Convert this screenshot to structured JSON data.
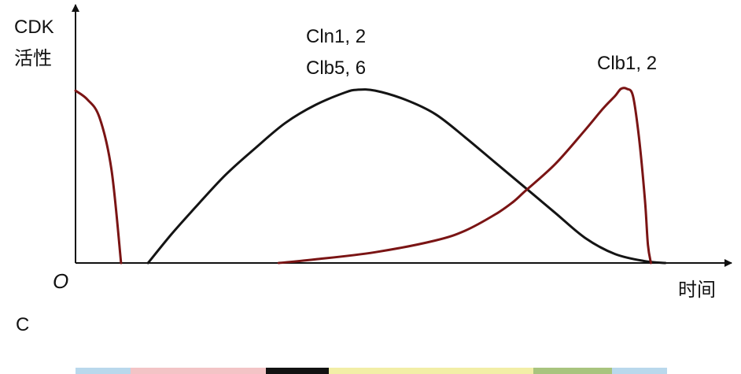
{
  "chart_data": {
    "type": "line",
    "ylabel": [
      "CDK",
      "活性"
    ],
    "xlabel": "时间",
    "origin_label": "O",
    "xlim": [
      0,
      100
    ],
    "ylim": [
      0,
      100
    ],
    "series": [
      {
        "name": "Cln1, 2 Clb5, 6",
        "label_lines": [
          "Cln1, 2",
          "Clb5, 6"
        ],
        "color": "#141414",
        "points": [
          [
            12.1,
            0
          ],
          [
            16,
            16
          ],
          [
            20,
            31
          ],
          [
            25,
            49
          ],
          [
            30,
            64
          ],
          [
            35,
            78
          ],
          [
            40,
            88
          ],
          [
            45,
            95
          ],
          [
            47,
            96.5
          ],
          [
            50,
            96
          ],
          [
            55,
            91
          ],
          [
            60,
            83
          ],
          [
            65,
            70
          ],
          [
            70,
            56
          ],
          [
            75,
            42
          ],
          [
            80,
            28
          ],
          [
            85,
            14
          ],
          [
            90,
            5
          ],
          [
            95,
            1
          ],
          [
            98.4,
            0
          ]
        ]
      },
      {
        "name": "Clb1, 2",
        "label_lines": [
          "Clb1, 2"
        ],
        "color": "#7a1414",
        "points": [
          [
            0,
            96
          ],
          [
            2,
            91
          ],
          [
            4,
            81
          ],
          [
            6,
            52
          ],
          [
            7.6,
            0
          ],
          null,
          [
            33.9,
            0
          ],
          [
            40,
            2
          ],
          [
            50,
            6
          ],
          [
            60,
            12.5
          ],
          [
            65,
            18
          ],
          [
            70,
            27
          ],
          [
            73,
            34
          ],
          [
            75,
            40
          ],
          [
            80,
            55
          ],
          [
            85,
            74
          ],
          [
            88,
            86
          ],
          [
            90,
            93
          ],
          [
            91,
            97
          ],
          [
            92,
            97
          ],
          [
            93,
            93
          ],
          [
            94,
            70
          ],
          [
            95,
            35
          ],
          [
            95.5,
            10
          ],
          [
            96,
            0
          ]
        ]
      }
    ],
    "grid": false
  },
  "footer": {
    "panel_letter": "C",
    "phase_strip": {
      "segments": [
        {
          "color": "#b9d8ec"
        },
        {
          "color": "#f3c4c6"
        },
        {
          "color": "#121212"
        },
        {
          "color": "#f2eea6"
        },
        {
          "color": "#a8c47e"
        },
        {
          "color": "#b9d8ec"
        }
      ]
    }
  }
}
